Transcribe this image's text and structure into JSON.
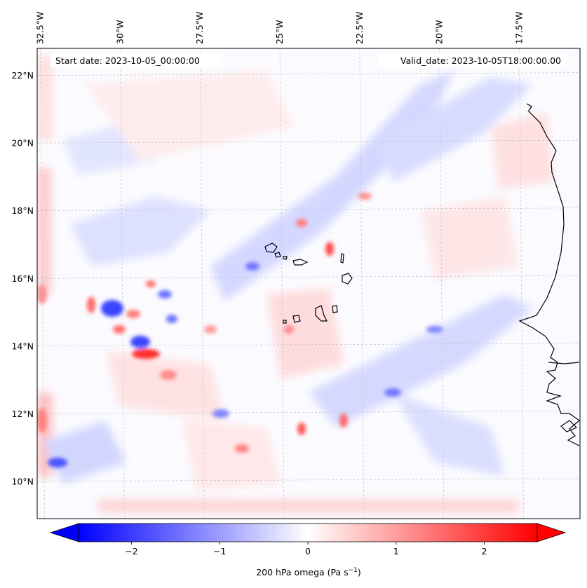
{
  "map": {
    "start_date_text": "Start date: 2023-10-05_00:00:00",
    "valid_date_text": "Valid_date: 2023-10-05T18:00:00.00",
    "lon_ticks": [
      {
        "value": -32.5,
        "label": "32.5°W"
      },
      {
        "value": -30.0,
        "label": "30°W"
      },
      {
        "value": -27.5,
        "label": "27.5°W"
      },
      {
        "value": -25.0,
        "label": "25°W"
      },
      {
        "value": -22.5,
        "label": "22.5°W"
      },
      {
        "value": -20.0,
        "label": "20°W"
      },
      {
        "value": -17.5,
        "label": "17.5°W"
      }
    ],
    "lat_ticks": [
      {
        "value": 22,
        "label": "22°N"
      },
      {
        "value": 20,
        "label": "20°N"
      },
      {
        "value": 18,
        "label": "18°N"
      },
      {
        "value": 16,
        "label": "16°N"
      },
      {
        "value": 14,
        "label": "14°N"
      },
      {
        "value": 12,
        "label": "12°N"
      },
      {
        "value": 10,
        "label": "10°N"
      }
    ],
    "extent": {
      "lon_min": -32.6,
      "lon_max": -15.6,
      "lat_min": 8.9,
      "lat_max": 22.8
    },
    "gridlines": true,
    "coastline_color": "#000000",
    "field_colormap": "bwr",
    "field_range": [
      -2.6,
      2.6
    ]
  },
  "colorbar": {
    "label_prefix": "200 hPa omega (Pa s",
    "label_exponent": "−1",
    "label_suffix": ")",
    "ticks": [
      {
        "value": -2,
        "label": "−2"
      },
      {
        "value": -1,
        "label": "−1"
      },
      {
        "value": 0,
        "label": "0"
      },
      {
        "value": 1,
        "label": "1"
      },
      {
        "value": 2,
        "label": "2"
      }
    ],
    "vmin": -2.6,
    "vmax": 2.6,
    "extend": "both",
    "low_color": "#0000ff",
    "mid_color": "#ffffff",
    "high_color": "#ff0000"
  }
}
